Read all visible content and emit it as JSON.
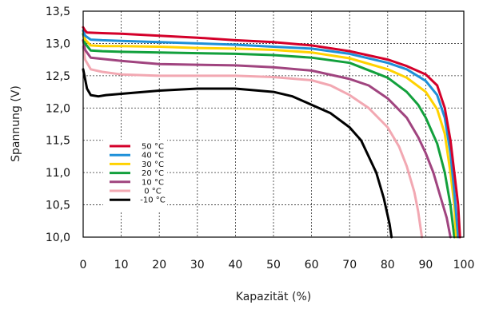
{
  "chart_data": {
    "type": "line",
    "title": "",
    "xlabel": "Kapazität (%)",
    "ylabel": "Spannung (V)",
    "xlim": [
      0,
      100
    ],
    "ylim": [
      10.0,
      13.5
    ],
    "x_ticks": [
      "0",
      "10",
      "20",
      "30",
      "40",
      "50",
      "60",
      "70",
      "80",
      "90",
      "100"
    ],
    "y_ticks": [
      "10,0",
      "10,5",
      "11,0",
      "11,5",
      "12,0",
      "12,5",
      "13,0",
      "13,5"
    ],
    "grid": true,
    "legend_position": "lower-left",
    "series": [
      {
        "name": "50 °C",
        "color": "#d4002a",
        "points": [
          [
            0,
            13.25
          ],
          [
            0.5,
            13.2
          ],
          [
            1,
            13.17
          ],
          [
            5,
            13.16
          ],
          [
            10,
            13.15
          ],
          [
            20,
            13.12
          ],
          [
            30,
            13.09
          ],
          [
            40,
            13.05
          ],
          [
            50,
            13.02
          ],
          [
            60,
            12.97
          ],
          [
            70,
            12.88
          ],
          [
            80,
            12.75
          ],
          [
            85,
            12.65
          ],
          [
            90,
            12.52
          ],
          [
            93,
            12.35
          ],
          [
            95,
            12.0
          ],
          [
            96.5,
            11.5
          ],
          [
            97.5,
            11.0
          ],
          [
            98.5,
            10.5
          ],
          [
            99,
            10.0
          ]
        ]
      },
      {
        "name": "40 °C",
        "color": "#1e90d8",
        "points": [
          [
            0,
            13.2
          ],
          [
            0.5,
            13.12
          ],
          [
            2,
            13.06
          ],
          [
            5,
            13.05
          ],
          [
            10,
            13.04
          ],
          [
            20,
            13.02
          ],
          [
            30,
            13.0
          ],
          [
            40,
            12.98
          ],
          [
            50,
            12.95
          ],
          [
            60,
            12.92
          ],
          [
            70,
            12.84
          ],
          [
            80,
            12.7
          ],
          [
            85,
            12.6
          ],
          [
            90,
            12.42
          ],
          [
            93,
            12.2
          ],
          [
            95,
            11.85
          ],
          [
            96.5,
            11.3
          ],
          [
            97.5,
            10.7
          ],
          [
            98.5,
            10.0
          ]
        ]
      },
      {
        "name": "30 °C",
        "color": "#ffd200",
        "points": [
          [
            0,
            13.2
          ],
          [
            0.5,
            13.06
          ],
          [
            2,
            12.97
          ],
          [
            5,
            12.96
          ],
          [
            10,
            12.96
          ],
          [
            20,
            12.95
          ],
          [
            30,
            12.93
          ],
          [
            40,
            12.92
          ],
          [
            50,
            12.9
          ],
          [
            60,
            12.86
          ],
          [
            70,
            12.77
          ],
          [
            80,
            12.6
          ],
          [
            85,
            12.47
          ],
          [
            90,
            12.25
          ],
          [
            93,
            11.98
          ],
          [
            95,
            11.6
          ],
          [
            96.5,
            11.0
          ],
          [
            97.5,
            10.5
          ],
          [
            98,
            10.0
          ]
        ]
      },
      {
        "name": "20 °C",
        "color": "#12a03c",
        "points": [
          [
            0,
            13.15
          ],
          [
            0.5,
            13.0
          ],
          [
            2,
            12.89
          ],
          [
            5,
            12.88
          ],
          [
            10,
            12.87
          ],
          [
            20,
            12.86
          ],
          [
            30,
            12.85
          ],
          [
            40,
            12.84
          ],
          [
            50,
            12.82
          ],
          [
            60,
            12.78
          ],
          [
            70,
            12.7
          ],
          [
            80,
            12.47
          ],
          [
            85,
            12.25
          ],
          [
            88,
            12.05
          ],
          [
            90,
            11.85
          ],
          [
            93,
            11.45
          ],
          [
            95,
            11.0
          ],
          [
            96.5,
            10.5
          ],
          [
            97.5,
            10.0
          ]
        ]
      },
      {
        "name": "10 °C",
        "color": "#a0447f",
        "points": [
          [
            0,
            13.05
          ],
          [
            0.5,
            12.9
          ],
          [
            2,
            12.78
          ],
          [
            5,
            12.76
          ],
          [
            10,
            12.73
          ],
          [
            20,
            12.68
          ],
          [
            30,
            12.67
          ],
          [
            40,
            12.66
          ],
          [
            50,
            12.63
          ],
          [
            60,
            12.58
          ],
          [
            70,
            12.45
          ],
          [
            75,
            12.35
          ],
          [
            80,
            12.15
          ],
          [
            85,
            11.85
          ],
          [
            88,
            11.55
          ],
          [
            90,
            11.3
          ],
          [
            92,
            11.0
          ],
          [
            94,
            10.6
          ],
          [
            95.5,
            10.3
          ],
          [
            96.5,
            10.0
          ]
        ]
      },
      {
        "name": "0 °C",
        "color": "#f2a8b2",
        "points": [
          [
            0,
            12.95
          ],
          [
            0.5,
            12.75
          ],
          [
            2,
            12.6
          ],
          [
            5,
            12.56
          ],
          [
            10,
            12.52
          ],
          [
            20,
            12.5
          ],
          [
            30,
            12.5
          ],
          [
            40,
            12.5
          ],
          [
            50,
            12.48
          ],
          [
            60,
            12.43
          ],
          [
            65,
            12.35
          ],
          [
            70,
            12.2
          ],
          [
            75,
            12.0
          ],
          [
            80,
            11.7
          ],
          [
            83,
            11.4
          ],
          [
            85,
            11.1
          ],
          [
            87,
            10.7
          ],
          [
            88,
            10.4
          ],
          [
            89,
            10.0
          ]
        ]
      },
      {
        "name": "-10 °C",
        "color": "#000000",
        "points": [
          [
            0,
            12.6
          ],
          [
            1,
            12.3
          ],
          [
            2,
            12.2
          ],
          [
            4,
            12.18
          ],
          [
            6,
            12.2
          ],
          [
            10,
            12.22
          ],
          [
            20,
            12.27
          ],
          [
            30,
            12.3
          ],
          [
            40,
            12.3
          ],
          [
            50,
            12.25
          ],
          [
            55,
            12.18
          ],
          [
            60,
            12.05
          ],
          [
            65,
            11.92
          ],
          [
            70,
            11.7
          ],
          [
            73,
            11.5
          ],
          [
            75,
            11.25
          ],
          [
            77,
            11.0
          ],
          [
            79,
            10.6
          ],
          [
            80.5,
            10.2
          ],
          [
            81,
            10.0
          ]
        ]
      }
    ]
  }
}
